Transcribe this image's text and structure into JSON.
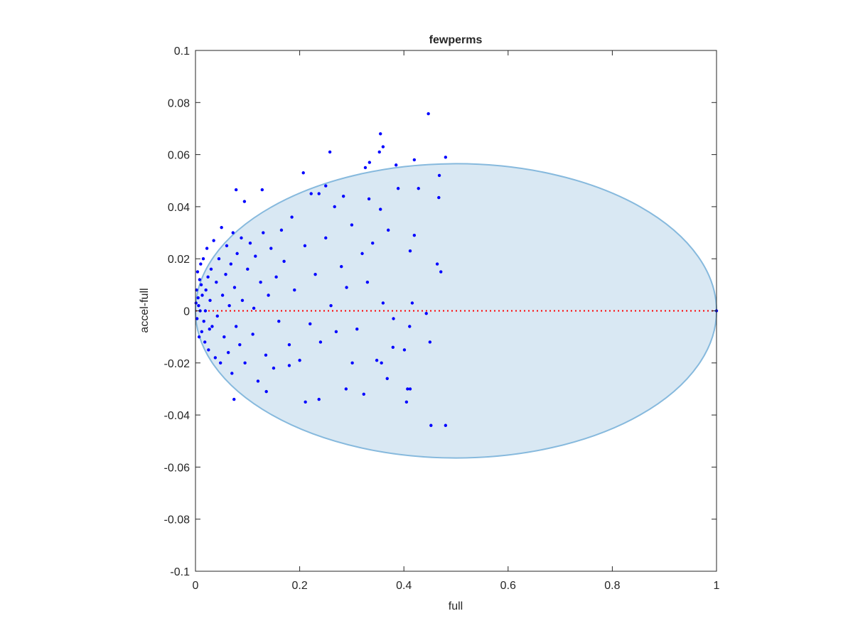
{
  "chart_data": {
    "type": "scatter",
    "title": "fewperms",
    "x_label": "full",
    "y_label": "accel-full",
    "xlim": [
      0,
      1
    ],
    "ylim": [
      -0.1,
      0.1
    ],
    "xticks": [
      0,
      0.2,
      0.4,
      0.6,
      0.8,
      1
    ],
    "yticks": [
      -0.1,
      -0.08,
      -0.06,
      -0.04,
      -0.02,
      0,
      0.02,
      0.04,
      0.06,
      0.08,
      0.1
    ],
    "ellipse": {
      "cx": 0.5,
      "cy": 0,
      "rx": 0.5,
      "ry": 0.0565,
      "color": "#d9e8f3",
      "edge_color": "#86b9dd"
    },
    "hline": {
      "value": 0,
      "color": "#ff0000"
    },
    "series": [
      {
        "color": "#0000ff",
        "x": [
          0.447,
          0.355,
          0.36,
          0.353,
          0.258,
          0.48,
          0.42,
          0.385,
          0.334,
          0.326,
          0.207,
          0.468,
          0.128,
          0.25,
          0.428,
          0.389,
          0.078,
          0.094,
          0.467,
          0.284,
          0.333,
          0.222,
          0.237,
          0.355,
          0.267,
          0.443,
          0.45,
          0.411,
          0.452,
          0.48,
          0.407,
          0.412,
          0.405,
          0.289,
          0.323,
          0.211,
          0.237,
          0.074,
          0.368,
          0.348,
          0.301,
          0.357,
          0.379,
          0.401,
          0.136,
          0.18,
          0.416,
          0.464,
          0.471,
          0.42,
          0.412,
          1.0,
          0.005,
          0.008,
          0.003,
          0.01,
          0.012,
          0.006,
          0.015,
          0.018,
          0.02,
          0.004,
          0.007,
          0.022,
          0.025,
          0.028,
          0.03,
          0.032,
          0.035,
          0.038,
          0.04,
          0.042,
          0.045,
          0.048,
          0.05,
          0.052,
          0.055,
          0.058,
          0.06,
          0.063,
          0.065,
          0.068,
          0.07,
          0.072,
          0.075,
          0.078,
          0.08,
          0.085,
          0.088,
          0.09,
          0.095,
          0.1,
          0.105,
          0.11,
          0.112,
          0.115,
          0.12,
          0.125,
          0.13,
          0.135,
          0.14,
          0.145,
          0.15,
          0.155,
          0.16,
          0.165,
          0.17,
          0.18,
          0.185,
          0.19,
          0.2,
          0.21,
          0.22,
          0.23,
          0.24,
          0.25,
          0.26,
          0.27,
          0.28,
          0.29,
          0.3,
          0.31,
          0.32,
          0.33,
          0.34,
          0.36,
          0.37,
          0.38,
          0.002,
          0.009,
          0.013,
          0.016,
          0.011,
          0.001,
          0.024,
          0.027,
          0.019
        ],
        "values": [
          0.0757,
          0.068,
          0.063,
          0.061,
          0.061,
          0.059,
          0.058,
          0.056,
          0.057,
          0.055,
          0.053,
          0.052,
          0.0465,
          0.048,
          0.047,
          0.047,
          0.0465,
          0.042,
          0.0435,
          0.044,
          0.043,
          0.045,
          0.045,
          0.039,
          0.04,
          -0.001,
          -0.012,
          -0.006,
          -0.044,
          -0.044,
          -0.03,
          -0.03,
          -0.035,
          -0.03,
          -0.032,
          -0.035,
          -0.034,
          -0.034,
          -0.026,
          -0.019,
          -0.02,
          -0.02,
          -0.014,
          -0.015,
          -0.031,
          -0.021,
          0.003,
          0.018,
          0.015,
          0.029,
          0.023,
          0,
          0.005,
          0.012,
          -0.003,
          0.018,
          -0.008,
          0.002,
          0.02,
          -0.012,
          0.008,
          0.015,
          -0.01,
          0.024,
          -0.015,
          0.004,
          0.016,
          -0.006,
          0.027,
          -0.018,
          0.011,
          -0.002,
          0.02,
          -0.02,
          0.032,
          0.006,
          -0.01,
          0.014,
          0.025,
          -0.016,
          0.002,
          0.018,
          -0.024,
          0.03,
          0.009,
          -0.006,
          0.022,
          -0.013,
          0.028,
          0.004,
          -0.02,
          0.016,
          0.026,
          -0.009,
          0.001,
          0.021,
          -0.027,
          0.011,
          0.03,
          -0.017,
          0.006,
          0.024,
          -0.022,
          0.013,
          -0.004,
          0.031,
          0.019,
          -0.013,
          0.036,
          0.008,
          -0.019,
          0.025,
          -0.005,
          0.014,
          -0.012,
          0.028,
          0.002,
          -0.008,
          0.017,
          0.009,
          0.033,
          -0.007,
          0.022,
          0.011,
          0.026,
          0.003,
          0.031,
          -0.003,
          0.008,
          0,
          0.006,
          -0.004,
          0.01,
          0.003,
          0.013,
          -0.007,
          0
        ]
      }
    ]
  }
}
